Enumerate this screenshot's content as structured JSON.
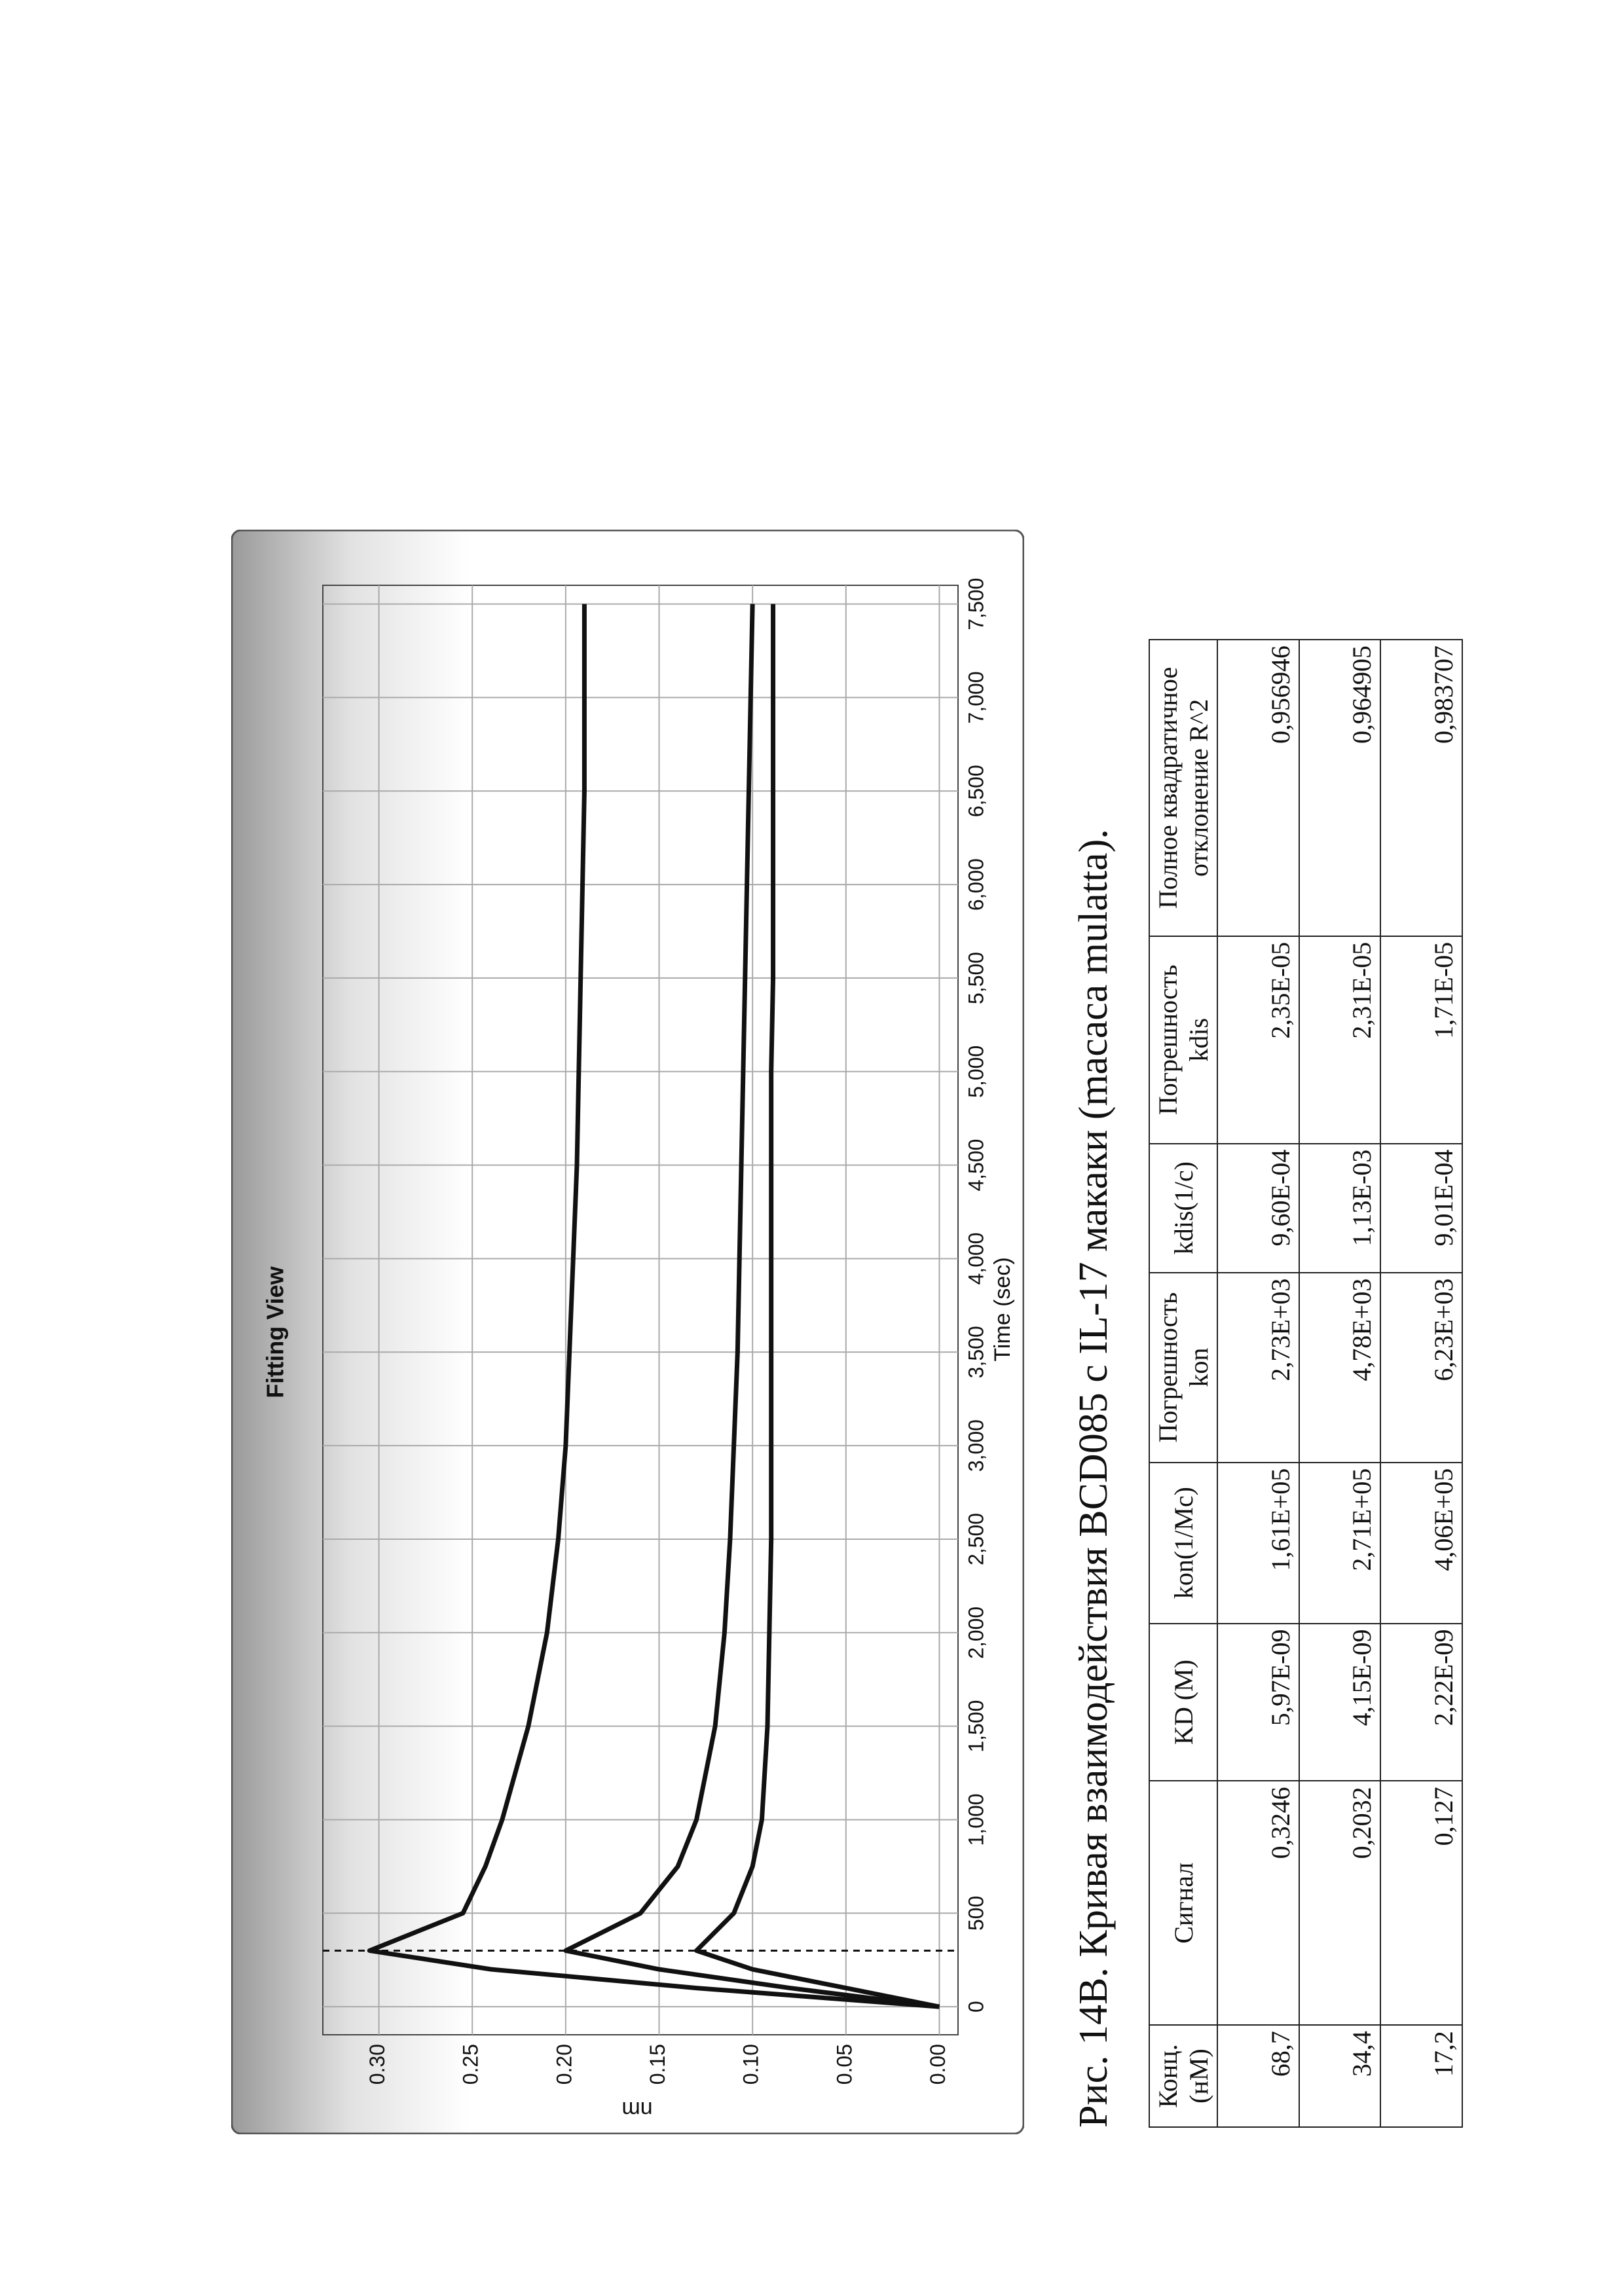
{
  "chart_data": {
    "type": "line",
    "title": "Fitting View",
    "x_label": "Time (sec)",
    "y_label": "nm",
    "xlim": [
      -150,
      7600
    ],
    "ylim": [
      -0.01,
      0.33
    ],
    "xticks": [
      0,
      500,
      {
        "value": 1000,
        "label": "1,000"
      },
      {
        "value": 1500,
        "label": "1,500"
      },
      {
        "value": 2000,
        "label": "2,000"
      },
      {
        "value": 2500,
        "label": "2,500"
      },
      {
        "value": 3000,
        "label": "3,000"
      },
      {
        "value": 3500,
        "label": "3,500"
      },
      {
        "value": 4000,
        "label": "4,000"
      },
      {
        "value": 4500,
        "label": "4,500"
      },
      {
        "value": 5000,
        "label": "5,000"
      },
      {
        "value": 5500,
        "label": "5,500"
      },
      {
        "value": 6000,
        "label": "6,000"
      },
      {
        "value": 6500,
        "label": "6,500"
      },
      {
        "value": 7000,
        "label": "7,000"
      },
      {
        "value": 7500,
        "label": "7,500"
      }
    ],
    "yticks": [
      {
        "value": 0,
        "label": "0.00"
      },
      {
        "value": 0.05,
        "label": "0.05"
      },
      {
        "value": 0.1,
        "label": "0.10"
      },
      {
        "value": 0.15,
        "label": "0.15"
      },
      {
        "value": 0.2,
        "label": "0.20"
      },
      {
        "value": 0.25,
        "label": "0.25"
      },
      {
        "value": 0.3,
        "label": "0.30"
      }
    ],
    "grid": true,
    "step_time": 300,
    "x": [
      0,
      100,
      200,
      300,
      500,
      750,
      1000,
      1500,
      2000,
      2500,
      3000,
      3500,
      4000,
      4500,
      5000,
      5500,
      6000,
      6500,
      7000,
      7500
    ],
    "series": [
      {
        "color": "#111111",
        "values": [
          0,
          0.13,
          0.24,
          0.305,
          0.255,
          0.243,
          0.234,
          0.22,
          0.21,
          0.204,
          0.2,
          0.198,
          0.196,
          0.194,
          0.193,
          0.192,
          0.191,
          0.19,
          0.19,
          0.19
        ]
      },
      {
        "color": "#111111",
        "values": [
          0,
          0.08,
          0.15,
          0.2,
          0.16,
          0.14,
          0.13,
          0.12,
          0.115,
          0.112,
          0.11,
          0.108,
          0.107,
          0.106,
          0.105,
          0.104,
          0.103,
          0.102,
          0.101,
          0.1
        ]
      },
      {
        "color": "#111111",
        "values": [
          0,
          0.05,
          0.1,
          0.13,
          0.11,
          0.1,
          0.095,
          0.092,
          0.091,
          0.09,
          0.09,
          0.09,
          0.09,
          0.09,
          0.09,
          0.089,
          0.089,
          0.089,
          0.089,
          0.089
        ]
      }
    ]
  },
  "caption": "Рис. 14В. Кривая взаимодействия BCD085 с IL-17 макаки (macaca mulatta).",
  "table": {
    "header": [
      "Конц. (нМ)",
      "Сигнал",
      "KD (M)",
      "kon(1/Mc)",
      "Погрешность kon",
      "kdis(1/c)",
      "Погрешность kdis",
      "Полное квадратичное отклонение R^2"
    ],
    "rows": [
      [
        "68,7",
        "0,3246",
        "5,97E-09",
        "1,61E+05",
        "2,73E+03",
        "9,60E-04",
        "2,35E-05",
        "0,956946"
      ],
      [
        "34,4",
        "0,2032",
        "4,15E-09",
        "2,71E+05",
        "4,78E+03",
        "1,13E-03",
        "2,31E-05",
        "0,964905"
      ],
      [
        "17,2",
        "0,127",
        "2,22E-09",
        "4,06E+05",
        "6,23E+03",
        "9,01E-04",
        "1,71E-05",
        "0,983707"
      ]
    ]
  }
}
